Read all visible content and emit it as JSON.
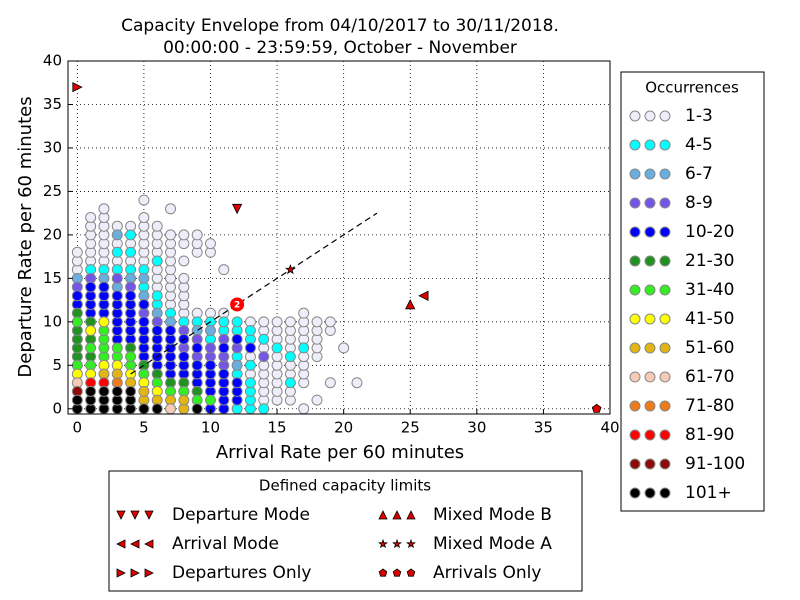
{
  "chart_data": {
    "type": "scatter",
    "title": "Capacity Envelope from 04/10/2017 to 30/11/2018.",
    "subtitle": "00:00:00 - 23:59:59, October - November",
    "x_label": "Arrival Rate per 60 minutes",
    "y_label": "Departure Rate per 60 minutes",
    "xlim": [
      -0.7,
      40
    ],
    "ylim": [
      -0.6,
      40
    ],
    "xticks": [
      0,
      5,
      10,
      15,
      20,
      25,
      30,
      35,
      40
    ],
    "yticks": [
      0,
      5,
      10,
      15,
      20,
      25,
      30,
      35,
      40
    ],
    "grid": true,
    "legend_title": "Occurrences",
    "series": [
      {
        "name": "1-3",
        "color": "#eeeefa",
        "x": [
          0,
          0,
          0,
          1,
          1,
          1,
          1,
          1,
          1,
          2,
          2,
          2,
          2,
          2,
          2,
          2,
          3,
          3,
          3,
          4,
          4,
          4,
          5,
          5,
          5,
          5,
          5,
          5,
          5,
          6,
          6,
          6,
          6,
          6,
          6,
          6,
          7,
          7,
          7,
          7,
          7,
          7,
          7,
          7,
          7,
          7,
          8,
          8,
          8,
          8,
          8,
          8,
          8,
          8,
          9,
          9,
          9,
          9,
          10,
          10,
          10,
          11,
          11,
          13,
          13,
          13,
          14,
          14,
          14,
          14,
          14,
          14,
          14,
          14,
          15,
          15,
          15,
          15,
          15,
          15,
          15,
          15,
          15,
          16,
          16,
          16,
          16,
          16,
          16,
          16,
          16,
          17,
          17,
          17,
          17,
          17,
          17,
          17,
          17,
          17,
          18,
          18,
          18,
          18,
          18,
          18,
          19,
          19,
          19,
          20,
          21
        ],
        "y": [
          16,
          17,
          18,
          17,
          18,
          19,
          20,
          21,
          22,
          17,
          18,
          19,
          20,
          21,
          22,
          23,
          17,
          19,
          21,
          17,
          19,
          21,
          17,
          18,
          19,
          20,
          21,
          22,
          24,
          14,
          15,
          16,
          18,
          19,
          20,
          21,
          12,
          13,
          14,
          15,
          16,
          17,
          18,
          19,
          20,
          23,
          11,
          12,
          13,
          14,
          15,
          17,
          19,
          20,
          11,
          18,
          19,
          20,
          11,
          18,
          19,
          11,
          16,
          4,
          6,
          10,
          1,
          2,
          3,
          4,
          5,
          7,
          9,
          10,
          1,
          2,
          3,
          4,
          5,
          6,
          8,
          9,
          10,
          1,
          2,
          4,
          5,
          7,
          8,
          9,
          10,
          0,
          3,
          4,
          5,
          6,
          8,
          9,
          10,
          11,
          1,
          6,
          7,
          8,
          9,
          10,
          3,
          9,
          10,
          7,
          3
        ]
      },
      {
        "name": "4-5",
        "color": "#00ffff",
        "x": [
          1,
          2,
          3,
          3,
          4,
          4,
          4,
          5,
          5,
          6,
          6,
          6,
          7,
          8,
          9,
          10,
          10,
          11,
          11,
          12,
          12,
          12,
          12,
          12,
          13,
          13,
          13,
          13,
          13,
          13,
          13,
          14,
          14,
          15,
          16,
          16,
          17
        ],
        "y": [
          16,
          16,
          16,
          18,
          16,
          18,
          20,
          14,
          16,
          12,
          13,
          17,
          11,
          10,
          10,
          8,
          10,
          9,
          10,
          0,
          4,
          6,
          9,
          10,
          0,
          1,
          2,
          3,
          5,
          8,
          9,
          0,
          8,
          7,
          3,
          6,
          7
        ]
      },
      {
        "name": "6-7",
        "color": "#6aaee0",
        "x": [
          0,
          2,
          3,
          3,
          4,
          5,
          5,
          6,
          7,
          8,
          9,
          10,
          12
        ],
        "y": [
          15,
          15,
          14,
          20,
          15,
          13,
          15,
          11,
          10,
          2,
          9,
          9,
          5
        ]
      },
      {
        "name": "8-9",
        "color": "#7355e8",
        "x": [
          0,
          1,
          3,
          4,
          5,
          6,
          8,
          8,
          9,
          9,
          10,
          10,
          11,
          11,
          11,
          12,
          14
        ],
        "y": [
          14,
          15,
          15,
          14,
          11,
          10,
          7,
          9,
          6,
          8,
          6,
          7,
          5,
          6,
          8,
          7,
          6
        ]
      },
      {
        "name": "10-20",
        "color": "#0000ff",
        "x": [
          0,
          0,
          1,
          1,
          1,
          1,
          2,
          2,
          2,
          2,
          3,
          3,
          3,
          3,
          3,
          3,
          4,
          4,
          4,
          4,
          4,
          4,
          5,
          5,
          5,
          5,
          5,
          5,
          6,
          6,
          6,
          6,
          6,
          7,
          7,
          7,
          7,
          7,
          7,
          8,
          8,
          8,
          8,
          9,
          9,
          9,
          9,
          10,
          10,
          10,
          10,
          10,
          11,
          11,
          11,
          11,
          11,
          11,
          12,
          12,
          12,
          12,
          13
        ],
        "y": [
          12,
          13,
          11,
          12,
          13,
          14,
          11,
          12,
          13,
          14,
          8,
          9,
          10,
          11,
          12,
          13,
          8,
          9,
          10,
          11,
          12,
          13,
          6,
          7,
          8,
          9,
          10,
          12,
          5,
          6,
          7,
          8,
          9,
          4,
          5,
          6,
          7,
          8,
          9,
          4,
          5,
          6,
          8,
          3,
          4,
          5,
          7,
          0,
          2,
          3,
          4,
          5,
          0,
          1,
          2,
          3,
          4,
          7,
          1,
          2,
          3,
          8,
          7
        ]
      },
      {
        "name": "21-30",
        "color": "#1f921f",
        "x": [
          0,
          0,
          0,
          0,
          0,
          1,
          1,
          1,
          4,
          5,
          6,
          7,
          8,
          9
        ],
        "y": [
          6,
          7,
          8,
          9,
          11,
          6,
          8,
          10,
          7,
          5,
          4,
          3,
          3,
          2
        ]
      },
      {
        "name": "31-40",
        "color": "#33ee22",
        "x": [
          0,
          0,
          1,
          1,
          2,
          2,
          2,
          2,
          3,
          3,
          4,
          4,
          5,
          6,
          7,
          8,
          9,
          10
        ],
        "y": [
          5,
          10,
          5,
          7,
          6,
          7,
          8,
          9,
          6,
          7,
          5,
          6,
          4,
          3,
          2,
          2,
          1,
          1
        ]
      },
      {
        "name": "41-50",
        "color": "#ffff00",
        "x": [
          0,
          1,
          1,
          2,
          2,
          3,
          4,
          5,
          6
        ],
        "y": [
          4,
          4,
          9,
          5,
          10,
          5,
          4,
          3,
          2
        ]
      },
      {
        "name": "51-60",
        "color": "#e3b512",
        "x": [
          2,
          3,
          4,
          5,
          5,
          6,
          7,
          8,
          8
        ],
        "y": [
          4,
          4,
          3,
          1,
          2,
          1,
          1,
          0,
          1
        ]
      },
      {
        "name": "61-70",
        "color": "#f6cbb5",
        "x": [
          0,
          7
        ],
        "y": [
          3,
          0
        ]
      },
      {
        "name": "71-80",
        "color": "#ee7a1a",
        "x": [
          3
        ],
        "y": [
          3
        ]
      },
      {
        "name": "81-90",
        "color": "#ff0000",
        "x": [
          1,
          2
        ],
        "y": [
          3,
          3
        ]
      },
      {
        "name": "91-100",
        "color": "#8e0b0b",
        "x": [
          0
        ],
        "y": [
          2
        ]
      },
      {
        "name": "101+",
        "color": "#000000",
        "x": [
          0,
          0,
          1,
          1,
          1,
          2,
          2,
          2,
          3,
          3,
          3,
          4,
          4,
          4,
          5,
          6,
          9
        ],
        "y": [
          0,
          1,
          0,
          1,
          2,
          0,
          1,
          2,
          0,
          1,
          2,
          0,
          1,
          2,
          0,
          0,
          0
        ]
      }
    ],
    "highlight": {
      "x": 12,
      "y": 12,
      "label": "2",
      "color": "#ff0000"
    },
    "reference_line": {
      "x": [
        4,
        22.5
      ],
      "y": [
        4,
        22.5
      ]
    },
    "capacity_limits": {
      "title": "Defined capacity limits",
      "color": "#dd0000",
      "series": [
        {
          "name": "Departure Mode",
          "marker": "down",
          "x": [
            12
          ],
          "y": [
            23
          ]
        },
        {
          "name": "Arrival Mode",
          "marker": "left",
          "x": [
            26
          ],
          "y": [
            13
          ]
        },
        {
          "name": "Departures Only",
          "marker": "right",
          "x": [
            0
          ],
          "y": [
            37
          ]
        },
        {
          "name": "Mixed Mode B",
          "marker": "up",
          "x": [
            25
          ],
          "y": [
            12
          ]
        },
        {
          "name": "Mixed Mode A",
          "marker": "star",
          "x": [
            16
          ],
          "y": [
            16
          ]
        },
        {
          "name": "Arrivals Only",
          "marker": "pentagon",
          "x": [
            39
          ],
          "y": [
            0
          ]
        }
      ]
    }
  }
}
